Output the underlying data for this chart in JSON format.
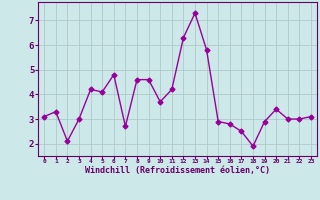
{
  "x": [
    0,
    1,
    2,
    3,
    4,
    5,
    6,
    7,
    8,
    9,
    10,
    11,
    12,
    13,
    14,
    15,
    16,
    17,
    18,
    19,
    20,
    21,
    22,
    23
  ],
  "y": [
    3.1,
    3.3,
    2.1,
    3.0,
    4.2,
    4.1,
    4.8,
    2.7,
    4.6,
    4.6,
    3.7,
    4.2,
    6.3,
    7.3,
    5.8,
    2.9,
    2.8,
    2.5,
    1.9,
    2.9,
    3.4,
    3.0,
    3.0,
    3.1
  ],
  "line_color": "#990099",
  "marker": "D",
  "markersize": 2.5,
  "linewidth": 1.0,
  "xlabel": "Windchill (Refroidissement éolien,°C)",
  "ylim": [
    1.5,
    7.75
  ],
  "xlim": [
    -0.5,
    23.5
  ],
  "yticks": [
    2,
    3,
    4,
    5,
    6,
    7
  ],
  "xticks": [
    0,
    1,
    2,
    3,
    4,
    5,
    6,
    7,
    8,
    9,
    10,
    11,
    12,
    13,
    14,
    15,
    16,
    17,
    18,
    19,
    20,
    21,
    22,
    23
  ],
  "grid_color": "#b0c8c8",
  "background_color": "#cce8e8",
  "spine_color": "#660066",
  "tick_color": "#660066",
  "label_color": "#660066"
}
